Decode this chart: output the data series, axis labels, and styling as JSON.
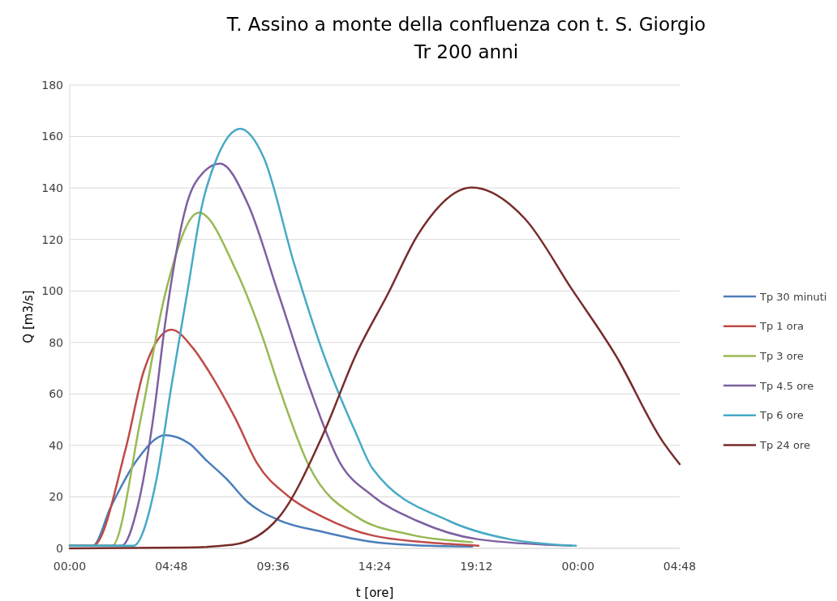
{
  "chart_data": {
    "type": "line",
    "title": "T. Assino a monte della confluenza con t. S. Giorgio",
    "subtitle": "Tr 200 anni",
    "xlabel": "t [ore]",
    "ylabel": "Q [m3/s]",
    "xlim": [
      "2000-01-01T00:00",
      "2000-01-02T04:48"
    ],
    "xticks": [
      {
        "value": "2000-01-01T00:00",
        "label": "00:00"
      },
      {
        "value": "2000-01-01T04:48",
        "label": "04:48"
      },
      {
        "value": "2000-01-01T09:36",
        "label": "09:36"
      },
      {
        "value": "2000-01-01T14:24",
        "label": "14:24"
      },
      {
        "value": "2000-01-01T19:12",
        "label": "19:12"
      },
      {
        "value": "2000-01-02T00:00",
        "label": "00:00"
      },
      {
        "value": "2000-01-02T04:48",
        "label": "04:48"
      }
    ],
    "ylim": [
      0,
      180
    ],
    "yticks": [
      0,
      20,
      40,
      60,
      80,
      100,
      120,
      140,
      160,
      180
    ],
    "grid": "y",
    "legend": "right",
    "marker": "none",
    "line_style": "solid",
    "series": [
      {
        "name": "Tp 30 minuti",
        "color": "#4a7ebb",
        "x": [
          "2000-01-01T00:00",
          "2000-01-01T01:06",
          "2000-01-01T01:56",
          "2000-01-01T03:12",
          "2000-01-01T04:30",
          "2000-01-01T05:40",
          "2000-01-01T06:24",
          "2000-01-01T07:24",
          "2000-01-01T08:24",
          "2000-01-01T09:52",
          "2000-01-01T12:00",
          "2000-01-01T14:18",
          "2000-01-01T17:00",
          "2000-01-01T19:00"
        ],
        "values": [
          1,
          1,
          16,
          34.6,
          44,
          40.6,
          34.6,
          27,
          18,
          11,
          6.3,
          2.5,
          1,
          0.7
        ]
      },
      {
        "name": "Tp 1 ora",
        "color": "#be4b48",
        "x": [
          "2000-01-01T00:00",
          "2000-01-01T01:06",
          "2000-01-01T02:39",
          "2000-01-01T03:30",
          "2000-01-01T04:48",
          "2000-01-01T05:48",
          "2000-01-01T06:42",
          "2000-01-01T07:51",
          "2000-01-01T08:51",
          "2000-01-01T10:18",
          "2000-01-01T12:00",
          "2000-01-01T14:18",
          "2000-01-01T17:54",
          "2000-01-01T19:18"
        ],
        "values": [
          1,
          1,
          39,
          69,
          85,
          78,
          67,
          50,
          33,
          20.4,
          12,
          5,
          1.7,
          1
        ]
      },
      {
        "name": "Tp 3 ore",
        "color": "#98b954",
        "x": [
          "2000-01-01T00:00",
          "2000-01-01T02:00",
          "2000-01-01T03:22",
          "2000-01-01T04:30",
          "2000-01-01T06:06",
          "2000-01-01T07:51",
          "2000-01-01T09:09",
          "2000-01-01T09:52",
          "2000-01-01T11:18",
          "2000-01-01T13:36",
          "2000-01-01T16:00",
          "2000-01-01T19:00"
        ],
        "values": [
          1,
          1,
          51,
          98.6,
          130.4,
          108,
          81,
          63,
          32,
          12,
          5.5,
          2.4
        ]
      },
      {
        "name": "Tp 4.5 ore",
        "color": "#7d60a0",
        "x": [
          "2000-01-01T00:00",
          "2000-01-01T02:27",
          "2000-01-01T03:12",
          "2000-01-01T03:57",
          "2000-01-01T04:30",
          "2000-01-01T05:32",
          "2000-01-01T06:18",
          "2000-01-01T07:06",
          "2000-01-01T08:24",
          "2000-01-01T09:52",
          "2000-01-01T11:18",
          "2000-01-01T12:45",
          "2000-01-01T14:18",
          "2000-01-01T16:24",
          "2000-01-01T19:18",
          "2000-01-01T23:42"
        ],
        "values": [
          1,
          1,
          16,
          51,
          87,
          134,
          146,
          149.5,
          134,
          98.6,
          63,
          33.4,
          20.4,
          10.7,
          3.5,
          1
        ]
      },
      {
        "name": "Tp 6 ore",
        "color": "#46aac5",
        "x": [
          "2000-01-01T00:00",
          "2000-01-01T03:00",
          "2000-01-01T04:06",
          "2000-01-01T04:48",
          "2000-01-01T05:32",
          "2000-01-01T06:16",
          "2000-01-01T06:58",
          "2000-01-01T08:03",
          "2000-01-01T09:09",
          "2000-01-01T10:36",
          "2000-01-01T12:00",
          "2000-01-01T13:30",
          "2000-01-01T14:18",
          "2000-01-01T17:54",
          "2000-01-01T20:48",
          "2000-01-01T23:54"
        ],
        "values": [
          1,
          1,
          27,
          63,
          98.6,
          134,
          152,
          163,
          152,
          110.5,
          75,
          45,
          31,
          10.7,
          3.5,
          1
        ]
      },
      {
        "name": "Tp 24 ore",
        "color": "#772c2a",
        "x": [
          "2000-01-01T00:00",
          "2000-01-01T05:30",
          "2000-01-01T07:42",
          "2000-01-01T09:52",
          "2000-01-01T12:00",
          "2000-01-01T13:30",
          "2000-01-01T15:00",
          "2000-01-01T16:27",
          "2000-01-01T18:59",
          "2000-01-01T21:30",
          "2000-01-01T23:42",
          "2000-01-02T01:48",
          "2000-01-02T04:00",
          "2000-01-02T04:48"
        ],
        "values": [
          0,
          0.3,
          1.4,
          12,
          45,
          75,
          98.5,
          122,
          140.2,
          128,
          100.8,
          74.7,
          41.5,
          32.7
        ]
      }
    ]
  }
}
